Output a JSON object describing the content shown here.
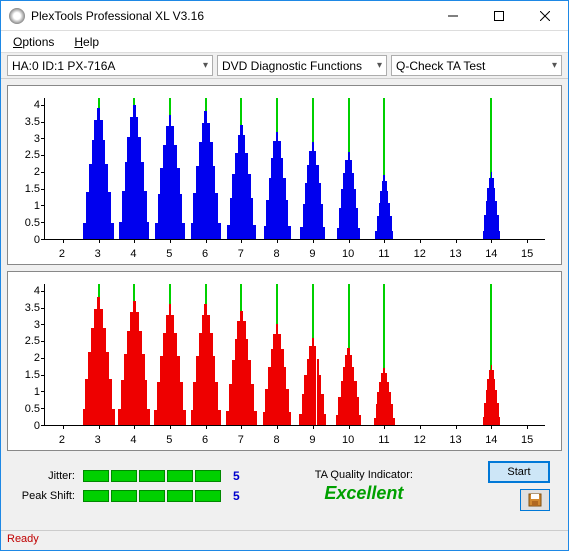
{
  "window": {
    "title": "PlexTools Professional XL V3.16"
  },
  "menu": {
    "options": "Options",
    "help": "Help"
  },
  "toolbar": {
    "device": "HA:0 ID:1   PX-716A",
    "mode": "DVD Diagnostic Functions",
    "test": "Q-Check TA Test"
  },
  "charts": {
    "ylim": [
      0,
      4.2
    ],
    "yticks": [
      0,
      0.5,
      1,
      1.5,
      2,
      2.5,
      3,
      3.5,
      4
    ],
    "xlim": [
      1.5,
      15.5
    ],
    "xticks": [
      2,
      3,
      4,
      5,
      6,
      7,
      8,
      9,
      10,
      11,
      12,
      13,
      14,
      15
    ],
    "vlines": [
      3,
      4,
      5,
      6,
      7,
      8,
      9,
      10,
      11,
      14
    ],
    "top": {
      "color": "#0000ee",
      "peaks": [
        {
          "c": 3,
          "h": 3.9,
          "w": 0.85
        },
        {
          "c": 4,
          "h": 4.0,
          "w": 0.85
        },
        {
          "c": 5,
          "h": 3.7,
          "w": 0.85
        },
        {
          "c": 6,
          "h": 3.8,
          "w": 0.85
        },
        {
          "c": 7,
          "h": 3.4,
          "w": 0.8
        },
        {
          "c": 8,
          "h": 3.2,
          "w": 0.75
        },
        {
          "c": 9,
          "h": 2.9,
          "w": 0.7
        },
        {
          "c": 10,
          "h": 2.6,
          "w": 0.65
        },
        {
          "c": 11,
          "h": 1.9,
          "w": 0.5
        },
        {
          "c": 14,
          "h": 2.0,
          "w": 0.5
        }
      ]
    },
    "bot": {
      "color": "#ee0000",
      "peaks": [
        {
          "c": 3,
          "h": 3.8,
          "w": 0.9
        },
        {
          "c": 4,
          "h": 3.7,
          "w": 0.9
        },
        {
          "c": 5,
          "h": 3.6,
          "w": 0.9
        },
        {
          "c": 6,
          "h": 3.6,
          "w": 0.85
        },
        {
          "c": 7,
          "h": 3.4,
          "w": 0.85
        },
        {
          "c": 8,
          "h": 3.0,
          "w": 0.8
        },
        {
          "c": 9,
          "h": 2.6,
          "w": 0.75
        },
        {
          "c": 10,
          "h": 2.3,
          "w": 0.7
        },
        {
          "c": 11,
          "h": 1.7,
          "w": 0.6
        },
        {
          "c": 14,
          "h": 1.8,
          "w": 0.5
        }
      ]
    }
  },
  "metrics": {
    "jitter_label": "Jitter:",
    "jitter_val": "5",
    "peak_label": "Peak Shift:",
    "peak_val": "5",
    "seg_count": 5,
    "seg_color": "#00d000"
  },
  "quality": {
    "label": "TA Quality Indicator:",
    "value": "Excellent",
    "color": "#00a000"
  },
  "buttons": {
    "start": "Start"
  },
  "status": {
    "text": "Ready",
    "color": "#c00000"
  }
}
